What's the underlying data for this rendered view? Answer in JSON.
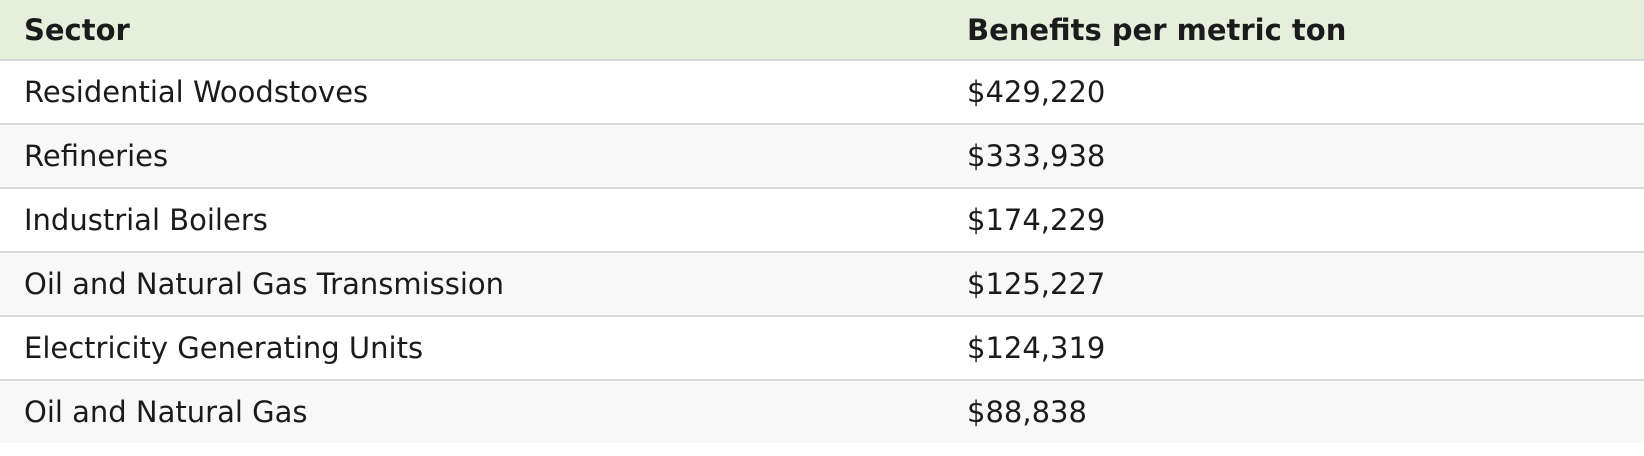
{
  "table": {
    "headers": [
      "Sector",
      "Benefits per metric ton"
    ],
    "rows": [
      [
        "Residential Woodstoves",
        "$429,220"
      ],
      [
        "Refineries",
        "$333,938"
      ],
      [
        "Industrial Boilers",
        "$174,229"
      ],
      [
        "Oil and Natural Gas Transmission",
        "$125,227"
      ],
      [
        "Electricity Generating Units",
        "$124,319"
      ],
      [
        "Oil and Natural Gas",
        "$88,838"
      ]
    ]
  },
  "colors": {
    "header_background": "#e6efdc",
    "row_alt_background": "#f8f8f8",
    "row_border": "#d9d9d9",
    "text": "#1b1b1b"
  }
}
